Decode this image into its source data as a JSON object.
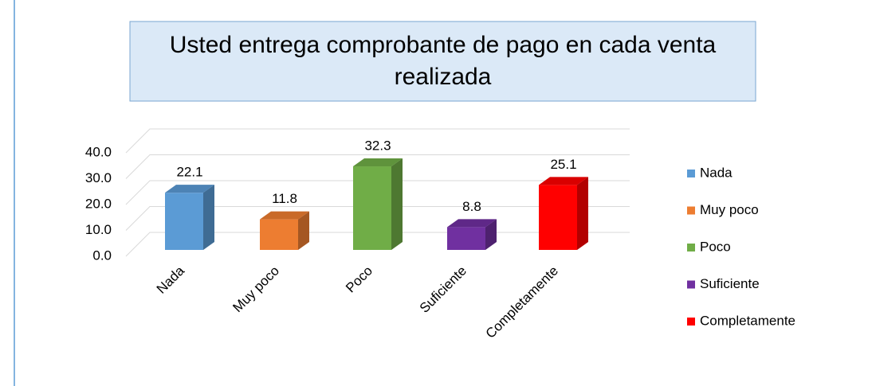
{
  "chart_data": {
    "type": "bar3d",
    "title": "Usted entrega comprobante de pago en cada venta realizada",
    "categories": [
      "Nada",
      "Muy poco",
      "Poco",
      "Suficiente",
      "Completamente"
    ],
    "values": [
      22.1,
      11.8,
      32.3,
      8.8,
      25.1
    ],
    "colors": [
      "#5b9bd5",
      "#ed7d31",
      "#70ad47",
      "#7030a0",
      "#ff0000"
    ],
    "ylim": [
      0,
      40
    ],
    "yticks": [
      {
        "value": 0,
        "label": "0.0"
      },
      {
        "value": 10,
        "label": "10.0"
      },
      {
        "value": 20,
        "label": "20.0"
      },
      {
        "value": 30,
        "label": "30.0"
      },
      {
        "value": 40,
        "label": "40.0"
      }
    ],
    "grid": true,
    "legend": "right"
  }
}
